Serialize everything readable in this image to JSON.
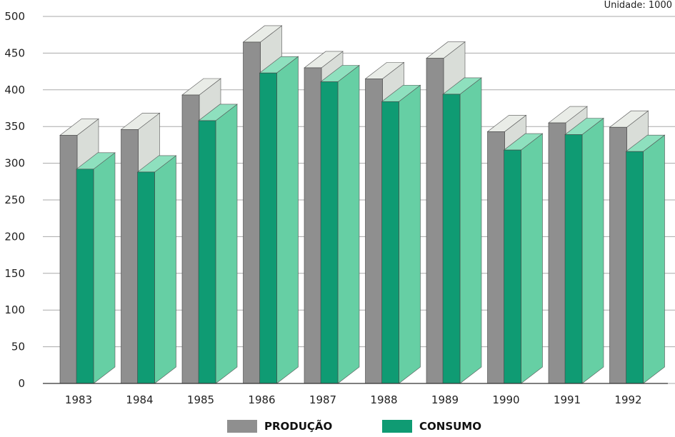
{
  "unit_label": "Unidade: 1000",
  "colors": {
    "producao_front": "#8f8f8f",
    "producao_side": "#d9ddd8",
    "producao_top": "#e9ece7",
    "consumo_front": "#0f9b73",
    "consumo_side": "#66cfa4",
    "consumo_top": "#8ee0be",
    "gridline": "#aaaaaa",
    "axis_text": "#222222"
  },
  "legend": {
    "items": [
      {
        "label": "PRODUÇÃO",
        "color": "#8f8f8f"
      },
      {
        "label": "CONSUMO",
        "color": "#0f9b73"
      }
    ]
  },
  "chart_data": {
    "type": "bar",
    "title": "",
    "xlabel": "",
    "ylabel": "",
    "ylim": [
      0,
      500
    ],
    "yticks": [
      0,
      50,
      100,
      150,
      200,
      250,
      300,
      350,
      400,
      450,
      500
    ],
    "categories": [
      "1983",
      "1984",
      "1985",
      "1986",
      "1987",
      "1988",
      "1989",
      "1990",
      "1991",
      "1992"
    ],
    "series": [
      {
        "name": "PRODUÇÃO",
        "values": [
          338,
          346,
          393,
          465,
          430,
          415,
          443,
          343,
          355,
          349
        ]
      },
      {
        "name": "CONSUMO",
        "values": [
          292,
          288,
          358,
          423,
          411,
          384,
          394,
          318,
          339,
          316
        ]
      }
    ],
    "grid": true,
    "legend_position": "bottom"
  }
}
